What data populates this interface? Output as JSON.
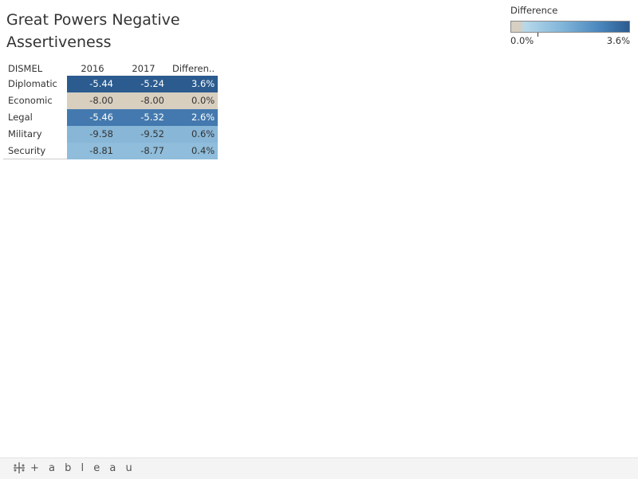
{
  "title": "Great Powers Negative Assertiveness",
  "legend": {
    "title": "Difference",
    "min_label": "0.0%",
    "max_label": "3.6%"
  },
  "footer": {
    "brand": "+ a b l e a u"
  },
  "colors": {
    "zero": "#d8cfbf",
    "low": "#9ec9e2",
    "mid": "#4d86bb",
    "high": "#2b5b8f"
  },
  "chart_data": {
    "type": "table",
    "columns": [
      "DISMEL",
      "2016",
      "2017",
      "Differen.."
    ],
    "rows": [
      {
        "label": "Diplomatic",
        "v2016": "-5.44",
        "v2017": "-5.24",
        "diff": "3.6%",
        "diff_value": 3.6
      },
      {
        "label": "Economic",
        "v2016": "-8.00",
        "v2017": "-8.00",
        "diff": "0.0%",
        "diff_value": 0.0
      },
      {
        "label": "Legal",
        "v2016": "-5.46",
        "v2017": "-5.32",
        "diff": "2.6%",
        "diff_value": 2.6
      },
      {
        "label": "Military",
        "v2016": "-9.58",
        "v2017": "-9.52",
        "diff": "0.6%",
        "diff_value": 0.6
      },
      {
        "label": "Security",
        "v2016": "-8.81",
        "v2017": "-8.77",
        "diff": "0.4%",
        "diff_value": 0.4
      }
    ],
    "color_scale": {
      "field": "Difference",
      "min": 0.0,
      "max": 3.6
    }
  }
}
